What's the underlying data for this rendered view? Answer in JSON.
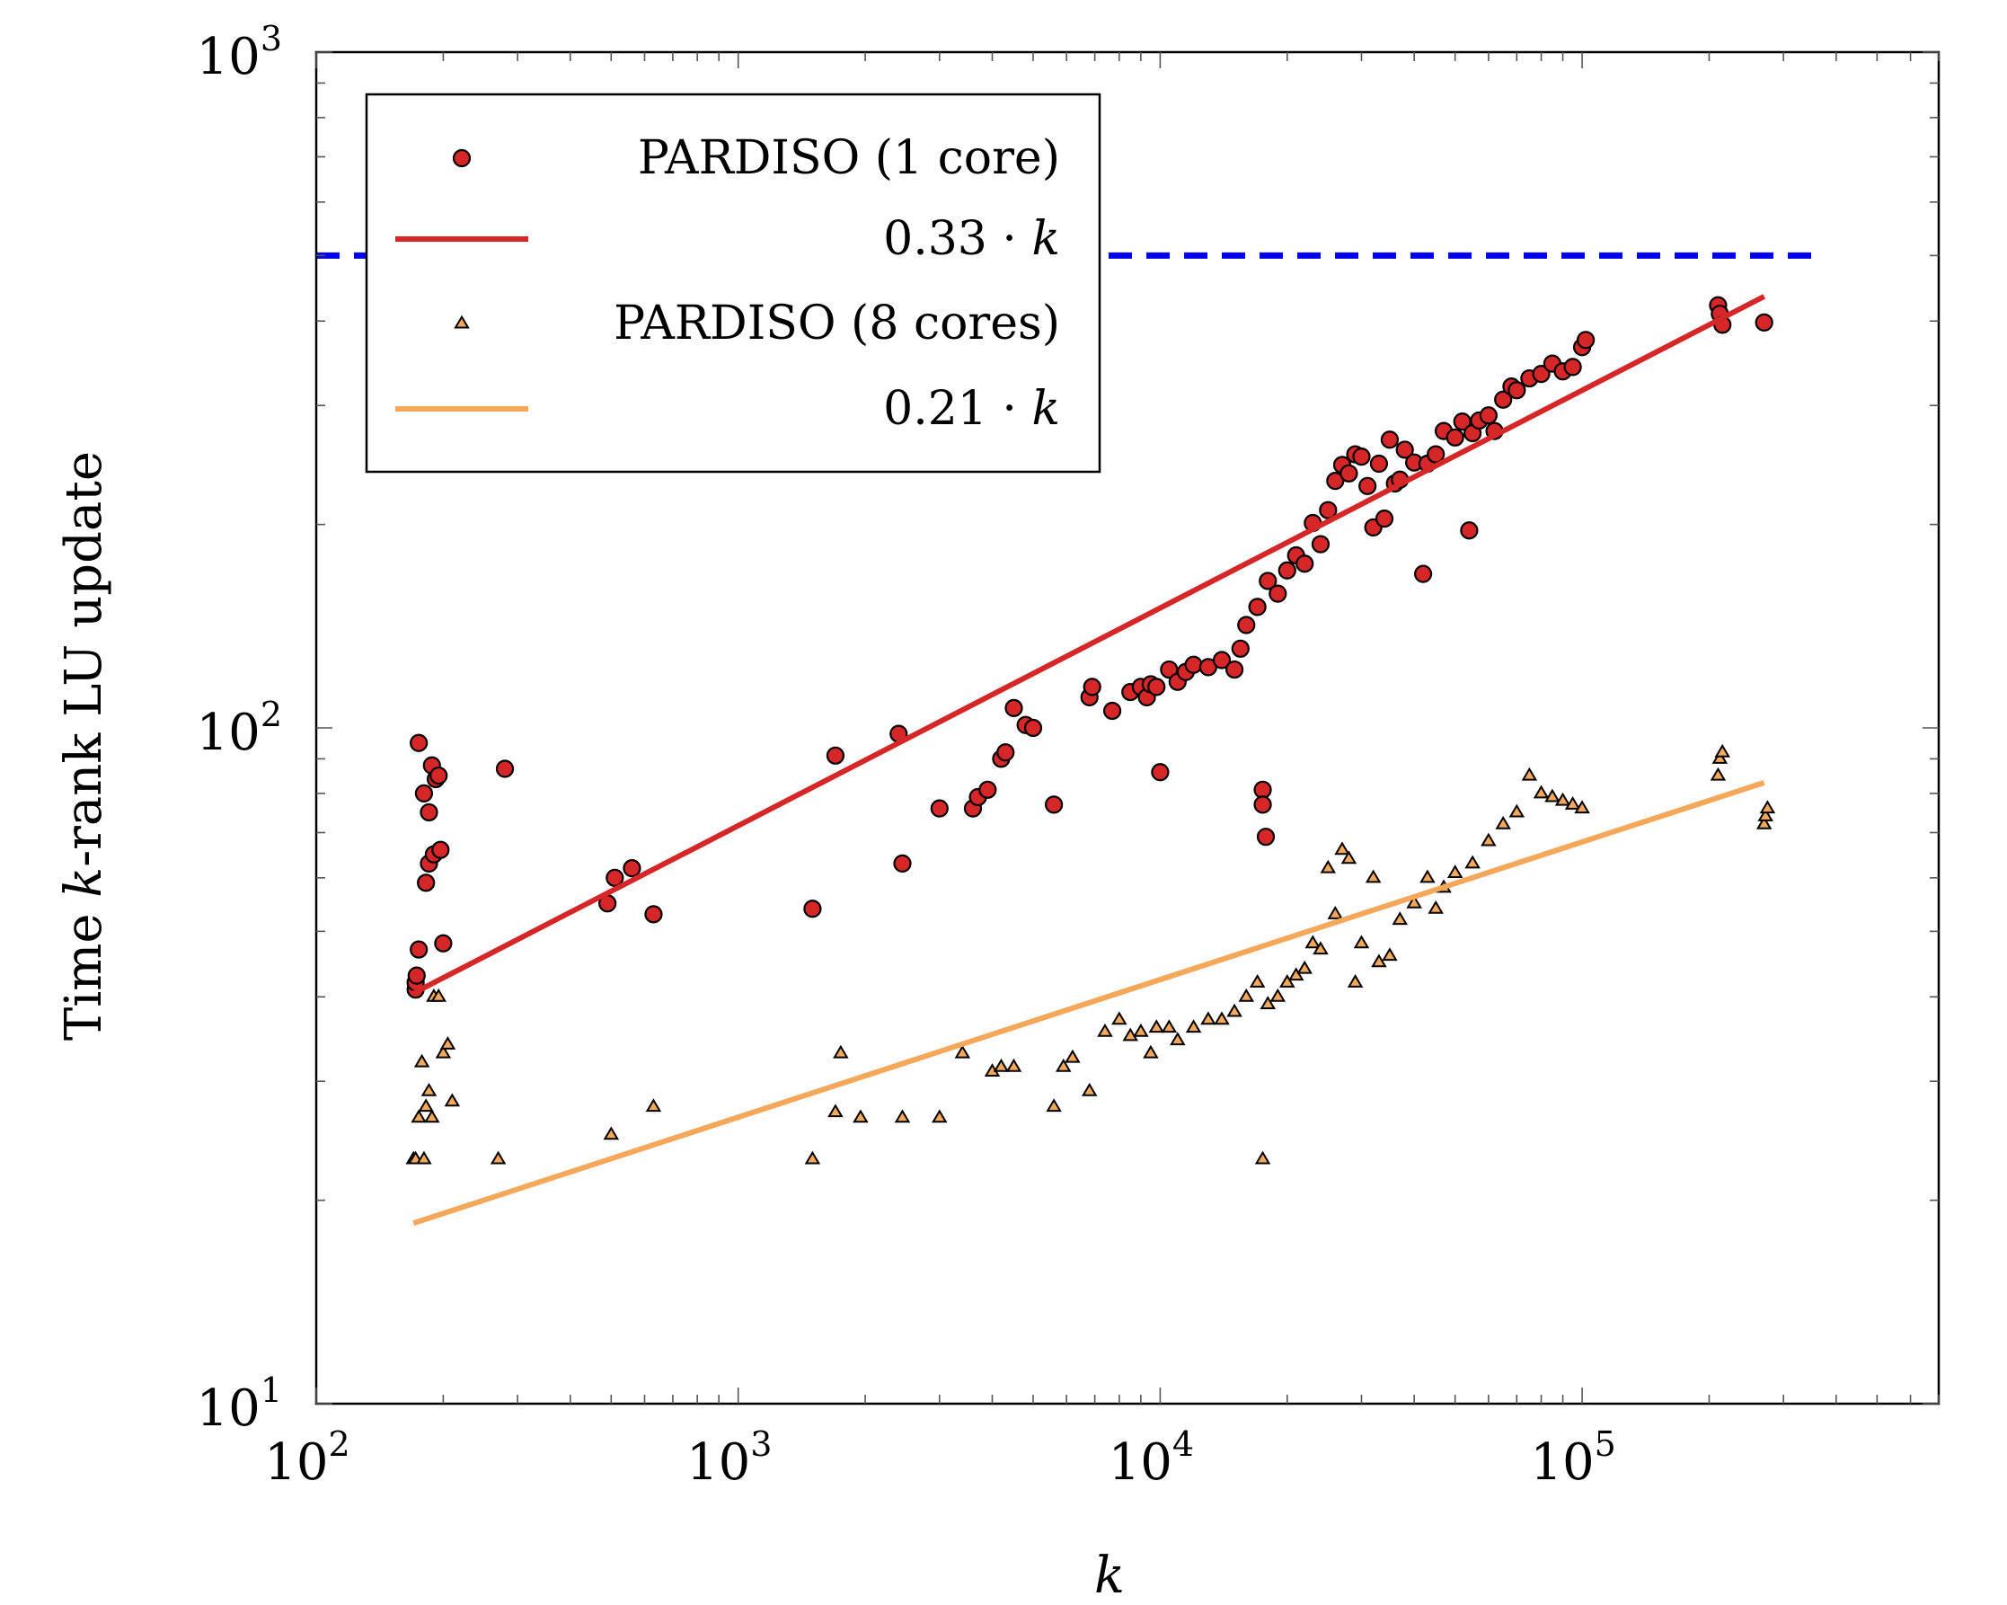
{
  "chart_data": {
    "type": "scatter",
    "xlabel": "k",
    "ylabel_parts": [
      "Time ",
      "k",
      "-rank LU update"
    ],
    "x_scale": "log",
    "y_scale": "log",
    "xlim": [
      100,
      700000
    ],
    "ylim": [
      10,
      1000
    ],
    "x_ticks": [
      {
        "base": "10",
        "exp": "2",
        "value": 100
      },
      {
        "base": "10",
        "exp": "3",
        "value": 1000
      },
      {
        "base": "10",
        "exp": "4",
        "value": 10000
      },
      {
        "base": "10",
        "exp": "5",
        "value": 100000
      }
    ],
    "y_ticks": [
      {
        "base": "10",
        "exp": "1",
        "value": 10
      },
      {
        "base": "10",
        "exp": "2",
        "value": 100
      },
      {
        "base": "10",
        "exp": "3",
        "value": 1000
      }
    ],
    "grid": false,
    "legend_position": "top-left",
    "reference_line": {
      "y": 500,
      "x_range": [
        100,
        350000
      ],
      "style": "dashed",
      "color": "#0000ee"
    },
    "series": [
      {
        "name": "PARDISO (1 core)",
        "kind": "scatter",
        "marker": "circle",
        "color": "#d62728",
        "points": [
          [
            172,
            41
          ],
          [
            172,
            42
          ],
          [
            173,
            43
          ],
          [
            175,
            47
          ],
          [
            175,
            95
          ],
          [
            180,
            80
          ],
          [
            182,
            59
          ],
          [
            185,
            63
          ],
          [
            185,
            75
          ],
          [
            188,
            88
          ],
          [
            190,
            65
          ],
          [
            192,
            84
          ],
          [
            195,
            85
          ],
          [
            197,
            66
          ],
          [
            200,
            48
          ],
          [
            280,
            87
          ],
          [
            490,
            55
          ],
          [
            510,
            60
          ],
          [
            560,
            62
          ],
          [
            630,
            53
          ],
          [
            1500,
            54
          ],
          [
            1700,
            91
          ],
          [
            2400,
            98
          ],
          [
            2450,
            63
          ],
          [
            3000,
            76
          ],
          [
            3600,
            76
          ],
          [
            3700,
            79
          ],
          [
            3900,
            81
          ],
          [
            4200,
            90
          ],
          [
            4300,
            92
          ],
          [
            4500,
            107
          ],
          [
            4800,
            101
          ],
          [
            5000,
            100
          ],
          [
            5600,
            77
          ],
          [
            6800,
            111
          ],
          [
            6900,
            115
          ],
          [
            7700,
            106
          ],
          [
            8500,
            113
          ],
          [
            9000,
            115
          ],
          [
            9300,
            111
          ],
          [
            9500,
            116
          ],
          [
            9800,
            115
          ],
          [
            10000,
            86
          ],
          [
            10500,
            122
          ],
          [
            11000,
            117
          ],
          [
            11500,
            121
          ],
          [
            12000,
            124
          ],
          [
            13000,
            123
          ],
          [
            14000,
            126
          ],
          [
            15000,
            122
          ],
          [
            15500,
            131
          ],
          [
            16000,
            142
          ],
          [
            17000,
            151
          ],
          [
            17500,
            81
          ],
          [
            17500,
            77
          ],
          [
            17800,
            69
          ],
          [
            18000,
            165
          ],
          [
            19000,
            158
          ],
          [
            20000,
            171
          ],
          [
            21000,
            180
          ],
          [
            22000,
            175
          ],
          [
            23000,
            201
          ],
          [
            24000,
            187
          ],
          [
            25000,
            210
          ],
          [
            26000,
            232
          ],
          [
            27000,
            245
          ],
          [
            28000,
            238
          ],
          [
            29000,
            254
          ],
          [
            30000,
            252
          ],
          [
            31000,
            228
          ],
          [
            32000,
            198
          ],
          [
            33000,
            246
          ],
          [
            34000,
            204
          ],
          [
            35000,
            267
          ],
          [
            36000,
            230
          ],
          [
            37000,
            233
          ],
          [
            38000,
            258
          ],
          [
            40000,
            247
          ],
          [
            42000,
            169
          ],
          [
            43000,
            246
          ],
          [
            45000,
            254
          ],
          [
            47000,
            275
          ],
          [
            50000,
            269
          ],
          [
            52000,
            284
          ],
          [
            54000,
            196
          ],
          [
            55000,
            273
          ],
          [
            57000,
            285
          ],
          [
            60000,
            290
          ],
          [
            62000,
            275
          ],
          [
            65000,
            306
          ],
          [
            68000,
            320
          ],
          [
            70000,
            316
          ],
          [
            75000,
            329
          ],
          [
            80000,
            334
          ],
          [
            85000,
            346
          ],
          [
            90000,
            337
          ],
          [
            95000,
            342
          ],
          [
            100000,
            366
          ],
          [
            102000,
            375
          ],
          [
            210000,
            422
          ],
          [
            212000,
            410
          ],
          [
            215000,
            395
          ],
          [
            270000,
            398
          ]
        ]
      },
      {
        "name": "0.33 · k",
        "kind": "line",
        "color": "#d62728",
        "points": [
          [
            170,
            40.5
          ],
          [
            270000,
            435
          ]
        ]
      },
      {
        "name": "PARDISO (8 cores)",
        "kind": "scatter",
        "marker": "triangle",
        "color": "#f5a75a",
        "points": [
          [
            170,
            23
          ],
          [
            172,
            23
          ],
          [
            175,
            26.5
          ],
          [
            178,
            32
          ],
          [
            180,
            23
          ],
          [
            182,
            27.5
          ],
          [
            185,
            29
          ],
          [
            188,
            26.5
          ],
          [
            190,
            40
          ],
          [
            195,
            40
          ],
          [
            200,
            33
          ],
          [
            205,
            34
          ],
          [
            210,
            28
          ],
          [
            270,
            23
          ],
          [
            500,
            25
          ],
          [
            630,
            27.5
          ],
          [
            1500,
            23
          ],
          [
            1700,
            27
          ],
          [
            1750,
            33
          ],
          [
            1950,
            26.5
          ],
          [
            2450,
            26.5
          ],
          [
            3000,
            26.5
          ],
          [
            3400,
            33
          ],
          [
            4000,
            31
          ],
          [
            4200,
            31.5
          ],
          [
            4500,
            31.5
          ],
          [
            5600,
            27.5
          ],
          [
            5900,
            31.5
          ],
          [
            6200,
            32.5
          ],
          [
            6800,
            29
          ],
          [
            7400,
            35.5
          ],
          [
            8000,
            37
          ],
          [
            8500,
            35
          ],
          [
            9000,
            35.5
          ],
          [
            9500,
            33
          ],
          [
            9800,
            36
          ],
          [
            10500,
            36
          ],
          [
            11000,
            34.5
          ],
          [
            12000,
            36
          ],
          [
            13000,
            37
          ],
          [
            14000,
            37
          ],
          [
            15000,
            38
          ],
          [
            16000,
            40
          ],
          [
            17000,
            42
          ],
          [
            17500,
            23
          ],
          [
            18000,
            39
          ],
          [
            19000,
            40
          ],
          [
            20000,
            42
          ],
          [
            21000,
            43
          ],
          [
            22000,
            44
          ],
          [
            23000,
            48
          ],
          [
            24000,
            47
          ],
          [
            25000,
            62
          ],
          [
            26000,
            53
          ],
          [
            27000,
            66
          ],
          [
            28000,
            64
          ],
          [
            29000,
            42
          ],
          [
            30000,
            48
          ],
          [
            32000,
            60
          ],
          [
            33000,
            45
          ],
          [
            35000,
            46
          ],
          [
            37000,
            52
          ],
          [
            40000,
            55
          ],
          [
            43000,
            60
          ],
          [
            45000,
            54
          ],
          [
            47000,
            58
          ],
          [
            50000,
            61
          ],
          [
            55000,
            63
          ],
          [
            60000,
            68
          ],
          [
            65000,
            72
          ],
          [
            70000,
            75
          ],
          [
            75000,
            85
          ],
          [
            80000,
            80
          ],
          [
            85000,
            79
          ],
          [
            90000,
            78
          ],
          [
            95000,
            77
          ],
          [
            100000,
            76
          ],
          [
            210000,
            85
          ],
          [
            212000,
            90
          ],
          [
            215000,
            92
          ],
          [
            270000,
            72
          ],
          [
            272000,
            74
          ],
          [
            275000,
            76
          ]
        ]
      },
      {
        "name": "0.21 · k",
        "kind": "line",
        "color": "#f5a75a",
        "points": [
          [
            170,
            18.5
          ],
          [
            270000,
            83
          ]
        ]
      }
    ]
  }
}
